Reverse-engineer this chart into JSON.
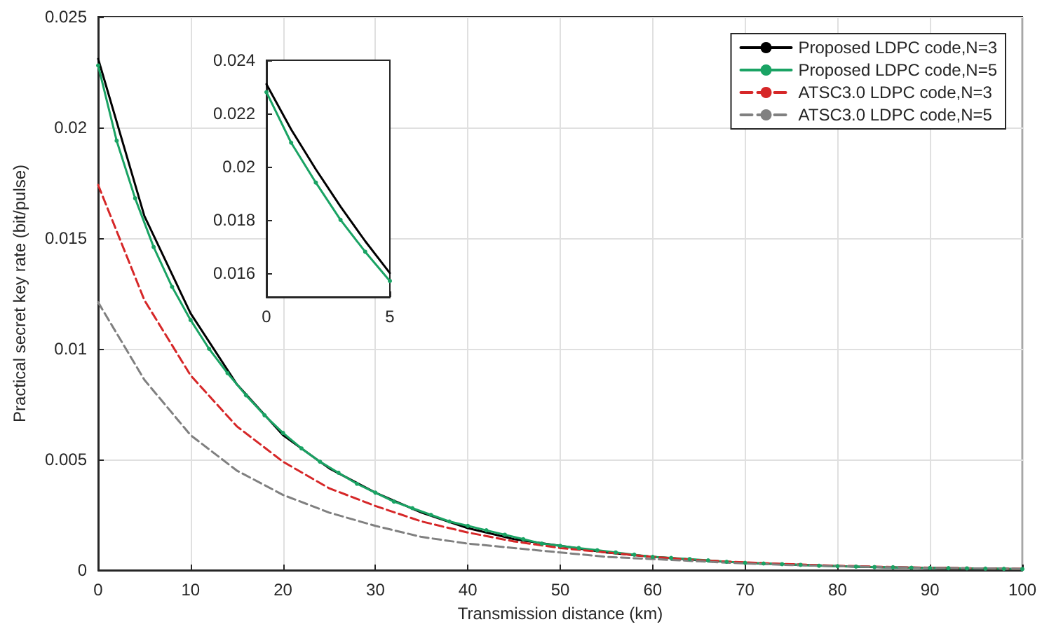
{
  "chart_data": [
    {
      "type": "line",
      "xlabel": "Transmission distance (km)",
      "ylabel": "Practical secret key rate (bit/pulse)",
      "xlim": [
        0,
        100
      ],
      "xticks": [
        0,
        10,
        20,
        30,
        40,
        50,
        60,
        70,
        80,
        90,
        100
      ],
      "ylim": [
        0,
        0.025
      ],
      "yticks": [
        0,
        0.005,
        0.01,
        0.015,
        0.02,
        0.025
      ],
      "grid": true,
      "legend": "top right",
      "series": [
        {
          "name": "Proposed LDPC code,N=3",
          "color": "#000000",
          "marker": "none",
          "line_style": "solid",
          "x": [
            0,
            5,
            10,
            15,
            20,
            25,
            30,
            35,
            40,
            45,
            50,
            55,
            60,
            65,
            70,
            75,
            80,
            85,
            90,
            95,
            100
          ],
          "values": [
            0.0231,
            0.016,
            0.0116,
            0.0084,
            0.0061,
            0.0046,
            0.0035,
            0.0026,
            0.0019,
            0.0014,
            0.0011,
            0.0008,
            0.0006,
            0.00045,
            0.00033,
            0.00025,
            0.00018,
            0.00013,
            0.0001,
            7e-05,
            5e-05
          ]
        },
        {
          "name": "Proposed LDPC code,N=5",
          "color": "#1aa364",
          "marker": "circle",
          "line_style": "solid",
          "x": [
            0,
            2,
            4,
            6,
            8,
            10,
            12,
            14,
            16,
            18,
            20,
            22,
            24,
            26,
            28,
            30,
            32,
            34,
            36,
            38,
            40,
            42,
            44,
            46,
            48,
            50,
            52,
            54,
            56,
            58,
            60,
            62,
            64,
            66,
            68,
            70,
            72,
            74,
            76,
            78,
            80,
            82,
            84,
            86,
            88,
            90,
            92,
            94,
            96,
            98,
            100
          ],
          "values": [
            0.0228,
            0.0194,
            0.0168,
            0.0146,
            0.0128,
            0.0113,
            0.01,
            0.0089,
            0.0079,
            0.007,
            0.0062,
            0.0055,
            0.0049,
            0.0044,
            0.0039,
            0.0035,
            0.0031,
            0.0028,
            0.0025,
            0.0022,
            0.002,
            0.0018,
            0.0016,
            0.0014,
            0.0012,
            0.0011,
            0.001,
            0.0009,
            0.0008,
            0.0007,
            0.0006,
            0.00055,
            0.0005,
            0.00044,
            0.00038,
            0.00033,
            0.0003,
            0.00027,
            0.00024,
            0.0002,
            0.00018,
            0.00016,
            0.00014,
            0.00013,
            0.00011,
            0.0001,
            9e-05,
            8e-05,
            7e-05,
            6e-05,
            5e-05
          ]
        },
        {
          "name": "ATSC3.0 LDPC code,N=3",
          "color": "#d62728",
          "marker": "none",
          "line_style": "dashed",
          "x": [
            0,
            5,
            10,
            15,
            20,
            25,
            30,
            35,
            40,
            45,
            50,
            55,
            60,
            65,
            70,
            75,
            80,
            85,
            90,
            95,
            100
          ],
          "values": [
            0.0174,
            0.0122,
            0.0088,
            0.0065,
            0.0049,
            0.0037,
            0.0029,
            0.0022,
            0.0017,
            0.0013,
            0.001,
            0.0008,
            0.0006,
            0.00045,
            0.00035,
            0.00027,
            0.0002,
            0.00015,
            0.00011,
            8e-05,
            6e-05
          ]
        },
        {
          "name": "ATSC3.0 LDPC code,N=5",
          "color": "#808080",
          "marker": "none",
          "line_style": "dashed",
          "x": [
            0,
            5,
            10,
            15,
            20,
            25,
            30,
            35,
            40,
            45,
            50,
            55,
            60,
            65,
            70,
            75,
            80,
            85,
            90,
            95,
            100
          ],
          "values": [
            0.0121,
            0.0086,
            0.0061,
            0.0045,
            0.0034,
            0.0026,
            0.002,
            0.0015,
            0.0012,
            0.001,
            0.0008,
            0.0006,
            0.0005,
            0.0004,
            0.0003,
            0.00023,
            0.00018,
            0.00014,
            0.0001,
            8e-05,
            6e-05
          ]
        }
      ]
    },
    {
      "type": "line",
      "xlim": [
        0,
        5
      ],
      "xticks": [
        0,
        5
      ],
      "ylim": [
        0.0151,
        0.024
      ],
      "yticks": [
        0.016,
        0.018,
        0.02,
        0.022,
        0.024
      ],
      "series": [
        {
          "color": "#000000",
          "marker": "none",
          "line_style": "solid",
          "x": [
            0,
            1,
            2,
            3,
            4,
            5
          ],
          "values": [
            0.0231,
            0.0214,
            0.0199,
            0.0185,
            0.0172,
            0.016
          ]
        },
        {
          "color": "#1aa364",
          "marker": "circle",
          "line_style": "solid",
          "x": [
            0,
            1,
            2,
            3,
            4,
            5
          ],
          "values": [
            0.0228,
            0.0209,
            0.0194,
            0.018,
            0.0168,
            0.0157
          ]
        }
      ]
    }
  ]
}
